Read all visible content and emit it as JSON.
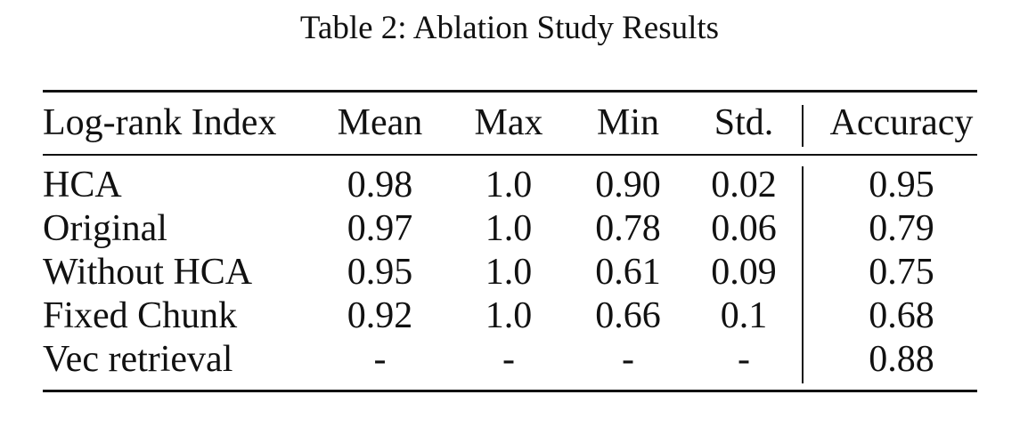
{
  "caption": "Table 2: Ablation Study Results",
  "table": {
    "headers": {
      "label": "Log-rank Index",
      "mean": "Mean",
      "max": "Max",
      "min": "Min",
      "std": "Std.",
      "accuracy": "Accuracy"
    },
    "rows": [
      {
        "label": "HCA",
        "mean": "0.98",
        "max": "1.0",
        "min": "0.90",
        "std": "0.02",
        "accuracy": "0.95"
      },
      {
        "label": "Original",
        "mean": "0.97",
        "max": "1.0",
        "min": "0.78",
        "std": "0.06",
        "accuracy": "0.79"
      },
      {
        "label": "Without HCA",
        "mean": "0.95",
        "max": "1.0",
        "min": "0.61",
        "std": "0.09",
        "accuracy": "0.75"
      },
      {
        "label": "Fixed Chunk",
        "mean": "0.92",
        "max": "1.0",
        "min": "0.66",
        "std": "0.1",
        "accuracy": "0.68"
      },
      {
        "label": "Vec retrieval",
        "mean": "-",
        "max": "-",
        "min": "-",
        "std": "-",
        "accuracy": "0.88"
      }
    ]
  }
}
